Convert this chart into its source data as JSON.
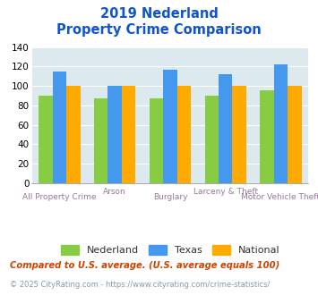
{
  "title_line1": "2019 Nederland",
  "title_line2": "Property Crime Comparison",
  "categories": [
    "All Property Crime",
    "Arson",
    "Burglary",
    "Larceny & Theft",
    "Motor Vehicle Theft"
  ],
  "nederland": [
    90,
    87,
    87,
    90,
    96
  ],
  "texas": [
    115,
    100,
    117,
    112,
    122
  ],
  "national": [
    100,
    100,
    100,
    100,
    100
  ],
  "color_nederland": "#88cc44",
  "color_texas": "#4499ee",
  "color_national": "#ffaa00",
  "ylim": [
    0,
    140
  ],
  "yticks": [
    0,
    20,
    40,
    60,
    80,
    100,
    120,
    140
  ],
  "bg_color": "#dce9ee",
  "legend_labels": [
    "Nederland",
    "Texas",
    "National"
  ],
  "footnote1": "Compared to U.S. average. (U.S. average equals 100)",
  "footnote2": "© 2025 CityRating.com - https://www.cityrating.com/crime-statistics/",
  "title_color": "#1155cc",
  "xlabel_color": "#997799",
  "footnote1_color": "#cc4400",
  "footnote2_color": "#8899aa"
}
